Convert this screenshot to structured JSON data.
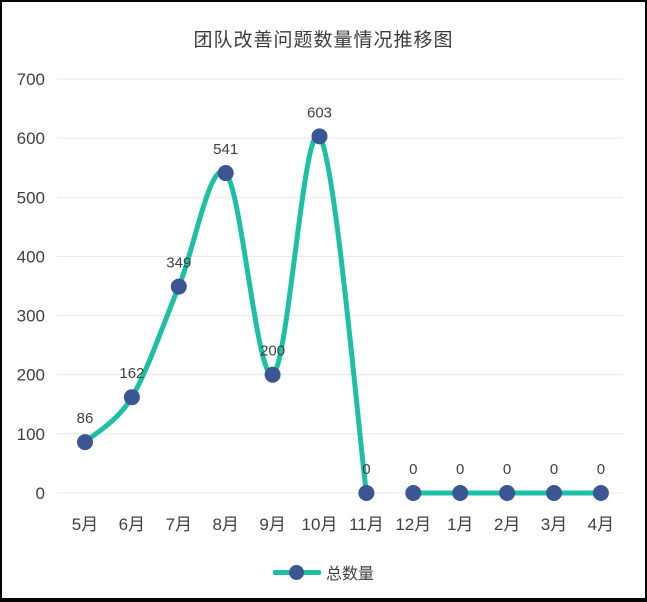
{
  "chart": {
    "title": "团队改善问题数量情况推移图",
    "legend": {
      "label": "总数量"
    },
    "colors": {
      "line": "#1cc0a4",
      "marker": "#3a5794",
      "grid": "#e7e7e7",
      "title_text": "#3b3b3b",
      "axis_text": "#3f3f3f",
      "label_text": "#3f3f3f"
    }
  },
  "chart_data": {
    "type": "line",
    "title": "团队改善问题数量情况推移图",
    "categories": [
      "5月",
      "6月",
      "7月",
      "8月",
      "9月",
      "10月",
      "11月",
      "12月",
      "1月",
      "2月",
      "3月",
      "4月"
    ],
    "series": [
      {
        "name": "总数量",
        "values": [
          86,
          162,
          349,
          541,
          200,
          603,
          0,
          0,
          0,
          0,
          0,
          0
        ]
      }
    ],
    "data_labels": [
      86,
      162,
      349,
      541,
      200,
      603,
      0,
      0,
      0,
      0,
      0,
      0
    ],
    "xlabel": "",
    "ylabel": "",
    "ylim": [
      0,
      700
    ],
    "yticks": [
      0,
      100,
      200,
      300,
      400,
      500,
      600,
      700
    ],
    "grid": "horizontal",
    "legend_position": "bottom",
    "smooth": true,
    "markers": true,
    "line_gap_between": [
      "11月",
      "12月"
    ]
  }
}
